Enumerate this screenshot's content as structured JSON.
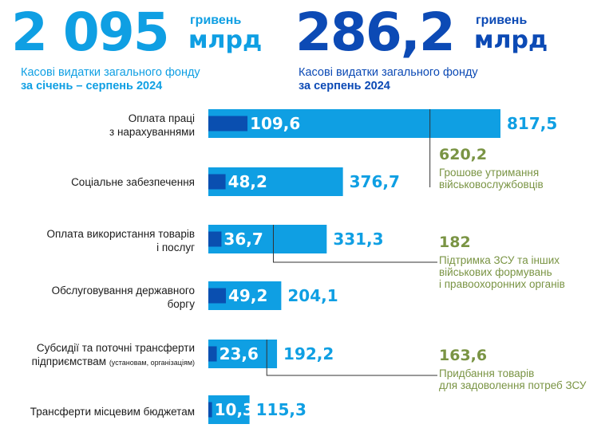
{
  "header": {
    "total": {
      "value": "2 095",
      "unit_top": "гривень",
      "unit_big": "млрд",
      "caption_line1": "Касові видатки загального фонду",
      "caption_line2": "за січень – серпень 2024"
    },
    "month": {
      "value": "286,2",
      "unit_top": "гривень",
      "unit_big": "млрд",
      "caption_line1": "Касові видатки загального фонду",
      "caption_line2": "за серпень 2024"
    }
  },
  "colors": {
    "light_blue": "#0f9fe3",
    "dark_blue": "#0a4fb0",
    "navy": "#0c4ab5",
    "green": "#7a9444",
    "text": "#1b1b1b"
  },
  "chart_data": {
    "type": "bar",
    "orientation": "horizontal",
    "categories": [
      [
        "Оплата праці",
        "з нарахуваннями"
      ],
      [
        "Соціальне забезпечення"
      ],
      [
        "Оплата використання товарів",
        "і послуг"
      ],
      [
        "Обслуговування державного",
        "боргу"
      ],
      [
        "Субсидії та поточні трансферти",
        "підприємствам"
      ],
      [
        "Трансферти місцевим бюджетам"
      ]
    ],
    "category_note": [
      "",
      "",
      "",
      "",
      "(установам, організаціям)",
      ""
    ],
    "series": [
      {
        "values": [
          817.5,
          376.7,
          331.3,
          204.1,
          192.2,
          115.3
        ],
        "labels": [
          "817,5",
          "376,7",
          "331,3",
          "204,1",
          "192,2",
          "115,3"
        ]
      },
      {
        "values": [
          109.6,
          48.2,
          36.7,
          49.2,
          23.6,
          10.3
        ],
        "labels": [
          "109,6",
          "48,2",
          "36,7",
          "49,2",
          "23,6",
          "10,3"
        ]
      }
    ],
    "annotations": [
      {
        "row": 0,
        "sub_value": 620.2,
        "value_label": "620,2",
        "text": [
          "Грошове утримання",
          "військовослужбовців"
        ]
      },
      {
        "row": 2,
        "sub_value": 182,
        "value_label": "182",
        "text": [
          "Підтримка ЗСУ та інших",
          "військових формувань",
          "і правоохоронних органів"
        ]
      },
      {
        "row": 4,
        "sub_value": 163.6,
        "value_label": "163,6",
        "text": [
          "Придбання товарів",
          "для задоволення потреб ЗСУ"
        ]
      }
    ]
  }
}
